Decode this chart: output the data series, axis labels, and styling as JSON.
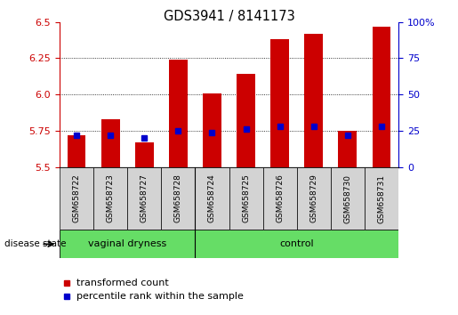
{
  "title": "GDS3941 / 8141173",
  "samples": [
    "GSM658722",
    "GSM658723",
    "GSM658727",
    "GSM658728",
    "GSM658724",
    "GSM658725",
    "GSM658726",
    "GSM658729",
    "GSM658730",
    "GSM658731"
  ],
  "transformed_counts": [
    5.72,
    5.83,
    5.67,
    6.24,
    6.01,
    6.14,
    6.38,
    6.42,
    5.75,
    6.47
  ],
  "percentile_ranks": [
    22,
    22,
    20,
    25,
    24,
    26,
    28,
    28,
    22,
    28
  ],
  "ylim_left": [
    5.5,
    6.5
  ],
  "ylim_right": [
    0,
    100
  ],
  "yticks_left": [
    5.5,
    5.75,
    6.0,
    6.25,
    6.5
  ],
  "yticks_right": [
    0,
    25,
    50,
    75,
    100
  ],
  "groups": [
    {
      "label": "vaginal dryness",
      "start": 0,
      "end": 4
    },
    {
      "label": "control",
      "start": 4,
      "end": 10
    }
  ],
  "bar_color": "#CC0000",
  "marker_color": "#0000CC",
  "bar_width": 0.55,
  "tick_label_color_left": "#CC0000",
  "tick_label_color_right": "#0000CC",
  "label_disease_state": "disease state",
  "legend_items": [
    "transformed count",
    "percentile rank within the sample"
  ],
  "baseline": 5.5,
  "group_fill": "#66DD66",
  "sample_box_fill": "#D3D3D3"
}
